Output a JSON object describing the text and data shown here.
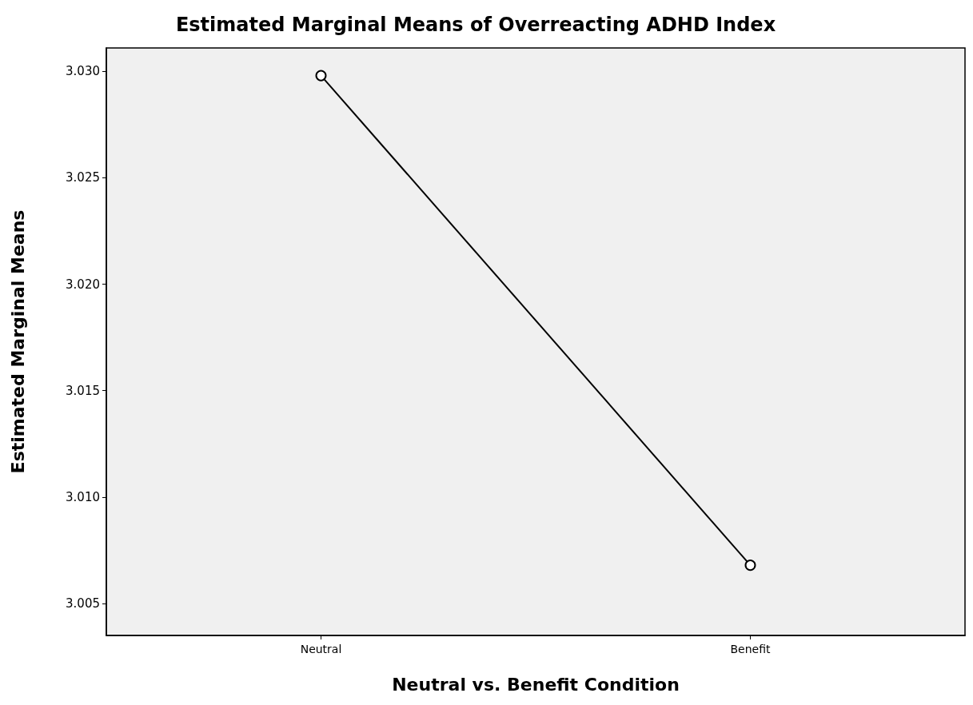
{
  "chart_data": {
    "type": "line",
    "title": "Estimated Marginal Means of Overreacting ADHD Index",
    "xlabel": "Neutral vs. Benefit Condition",
    "ylabel": "Estimated Marginal Means",
    "categories": [
      "Neutral",
      "Benefit"
    ],
    "series": [
      {
        "color": "#000000",
        "values": [
          3.0298,
          3.0068
        ]
      }
    ],
    "ylim": [
      3.0035,
      3.0311
    ],
    "yticks": [
      {
        "value": 3.005,
        "label": "3.005"
      },
      {
        "value": 3.01,
        "label": "3.010"
      },
      {
        "value": 3.015,
        "label": "3.015"
      },
      {
        "value": 3.02,
        "label": "3.020"
      },
      {
        "value": 3.025,
        "label": "3.025"
      },
      {
        "value": 3.03,
        "label": "3.030"
      }
    ],
    "grid": false,
    "marker": "circle",
    "line_style": "solid"
  }
}
